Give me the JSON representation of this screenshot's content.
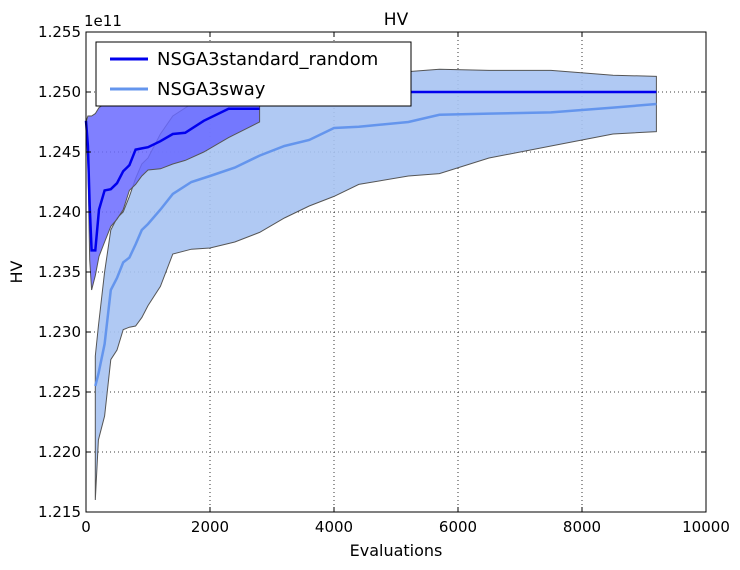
{
  "chart_data": {
    "type": "line",
    "title": "HV",
    "xlabel": "Evaluations",
    "ylabel": "HV",
    "y_scale_label": "1e11",
    "scale": 100000000000,
    "xlim": [
      0,
      10000
    ],
    "ylim": [
      1.215,
      1.255
    ],
    "x_ticks": [
      "0",
      "2000",
      "4000",
      "6000",
      "8000",
      "10000"
    ],
    "y_ticks": [
      "1.215",
      "1.220",
      "1.225",
      "1.230",
      "1.235",
      "1.240",
      "1.245",
      "1.250",
      "1.255"
    ],
    "grid": true,
    "legend_position": "top-left",
    "series": [
      {
        "name": "NSGA3standard_random",
        "color": "#0000ee",
        "band_color": "#6a6aff",
        "x": [
          0,
          30,
          60,
          90,
          150,
          210,
          300,
          400,
          500,
          600,
          700,
          800,
          900,
          1000,
          1200,
          1400,
          1600,
          1900,
          2300,
          2800
        ],
        "mean": [
          1.2476,
          1.2455,
          1.2405,
          1.2368,
          1.2368,
          1.2402,
          1.2418,
          1.2419,
          1.2424,
          1.2434,
          1.2439,
          1.2452,
          1.2453,
          1.2454,
          1.2459,
          1.2465,
          1.2466,
          1.2476,
          1.2486,
          1.2486
        ],
        "upper": [
          1.2475,
          1.248,
          1.248,
          1.248,
          1.2482,
          1.2487,
          1.249,
          1.249,
          1.2495,
          1.25,
          1.25,
          1.25,
          1.25,
          1.25,
          1.25,
          1.25,
          1.25,
          1.25,
          1.25,
          1.25
        ],
        "lower": [
          1.2475,
          1.244,
          1.236,
          1.2335,
          1.2347,
          1.2363,
          1.2375,
          1.2388,
          1.2394,
          1.2402,
          1.2418,
          1.2423,
          1.243,
          1.2435,
          1.2436,
          1.244,
          1.2443,
          1.245,
          1.2462,
          1.2475
        ]
      },
      {
        "name": "NSGA3sway",
        "color": "#6495ed",
        "band_color": "#a7c3f2",
        "x": [
          150,
          200,
          300,
          400,
          500,
          600,
          700,
          800,
          900,
          1000,
          1200,
          1400,
          1700,
          2000,
          2400,
          2800,
          3200,
          3600,
          4000,
          4400,
          5200,
          5700,
          6500,
          7500,
          8500,
          9200
        ],
        "mean": [
          1.2255,
          1.2265,
          1.229,
          1.2335,
          1.2345,
          1.2358,
          1.2362,
          1.2373,
          1.2385,
          1.239,
          1.2402,
          1.2415,
          1.2425,
          1.243,
          1.2437,
          1.2447,
          1.2455,
          1.246,
          1.247,
          1.2471,
          1.2475,
          1.2481,
          1.2482,
          1.2483,
          1.2487,
          1.249
        ],
        "upper": [
          1.228,
          1.2305,
          1.235,
          1.2385,
          1.2395,
          1.24,
          1.2413,
          1.2428,
          1.244,
          1.2445,
          1.2465,
          1.248,
          1.249,
          1.2495,
          1.2497,
          1.25,
          1.2505,
          1.251,
          1.2512,
          1.2515,
          1.2517,
          1.2519,
          1.2518,
          1.2518,
          1.2514,
          1.2513
        ],
        "lower": [
          1.216,
          1.221,
          1.223,
          1.2277,
          1.2285,
          1.2302,
          1.2304,
          1.2305,
          1.2312,
          1.2322,
          1.2338,
          1.2365,
          1.2369,
          1.237,
          1.2375,
          1.2383,
          1.2395,
          1.2405,
          1.2413,
          1.2423,
          1.243,
          1.2432,
          1.2445,
          1.2455,
          1.2465,
          1.2467
        ]
      }
    ]
  }
}
